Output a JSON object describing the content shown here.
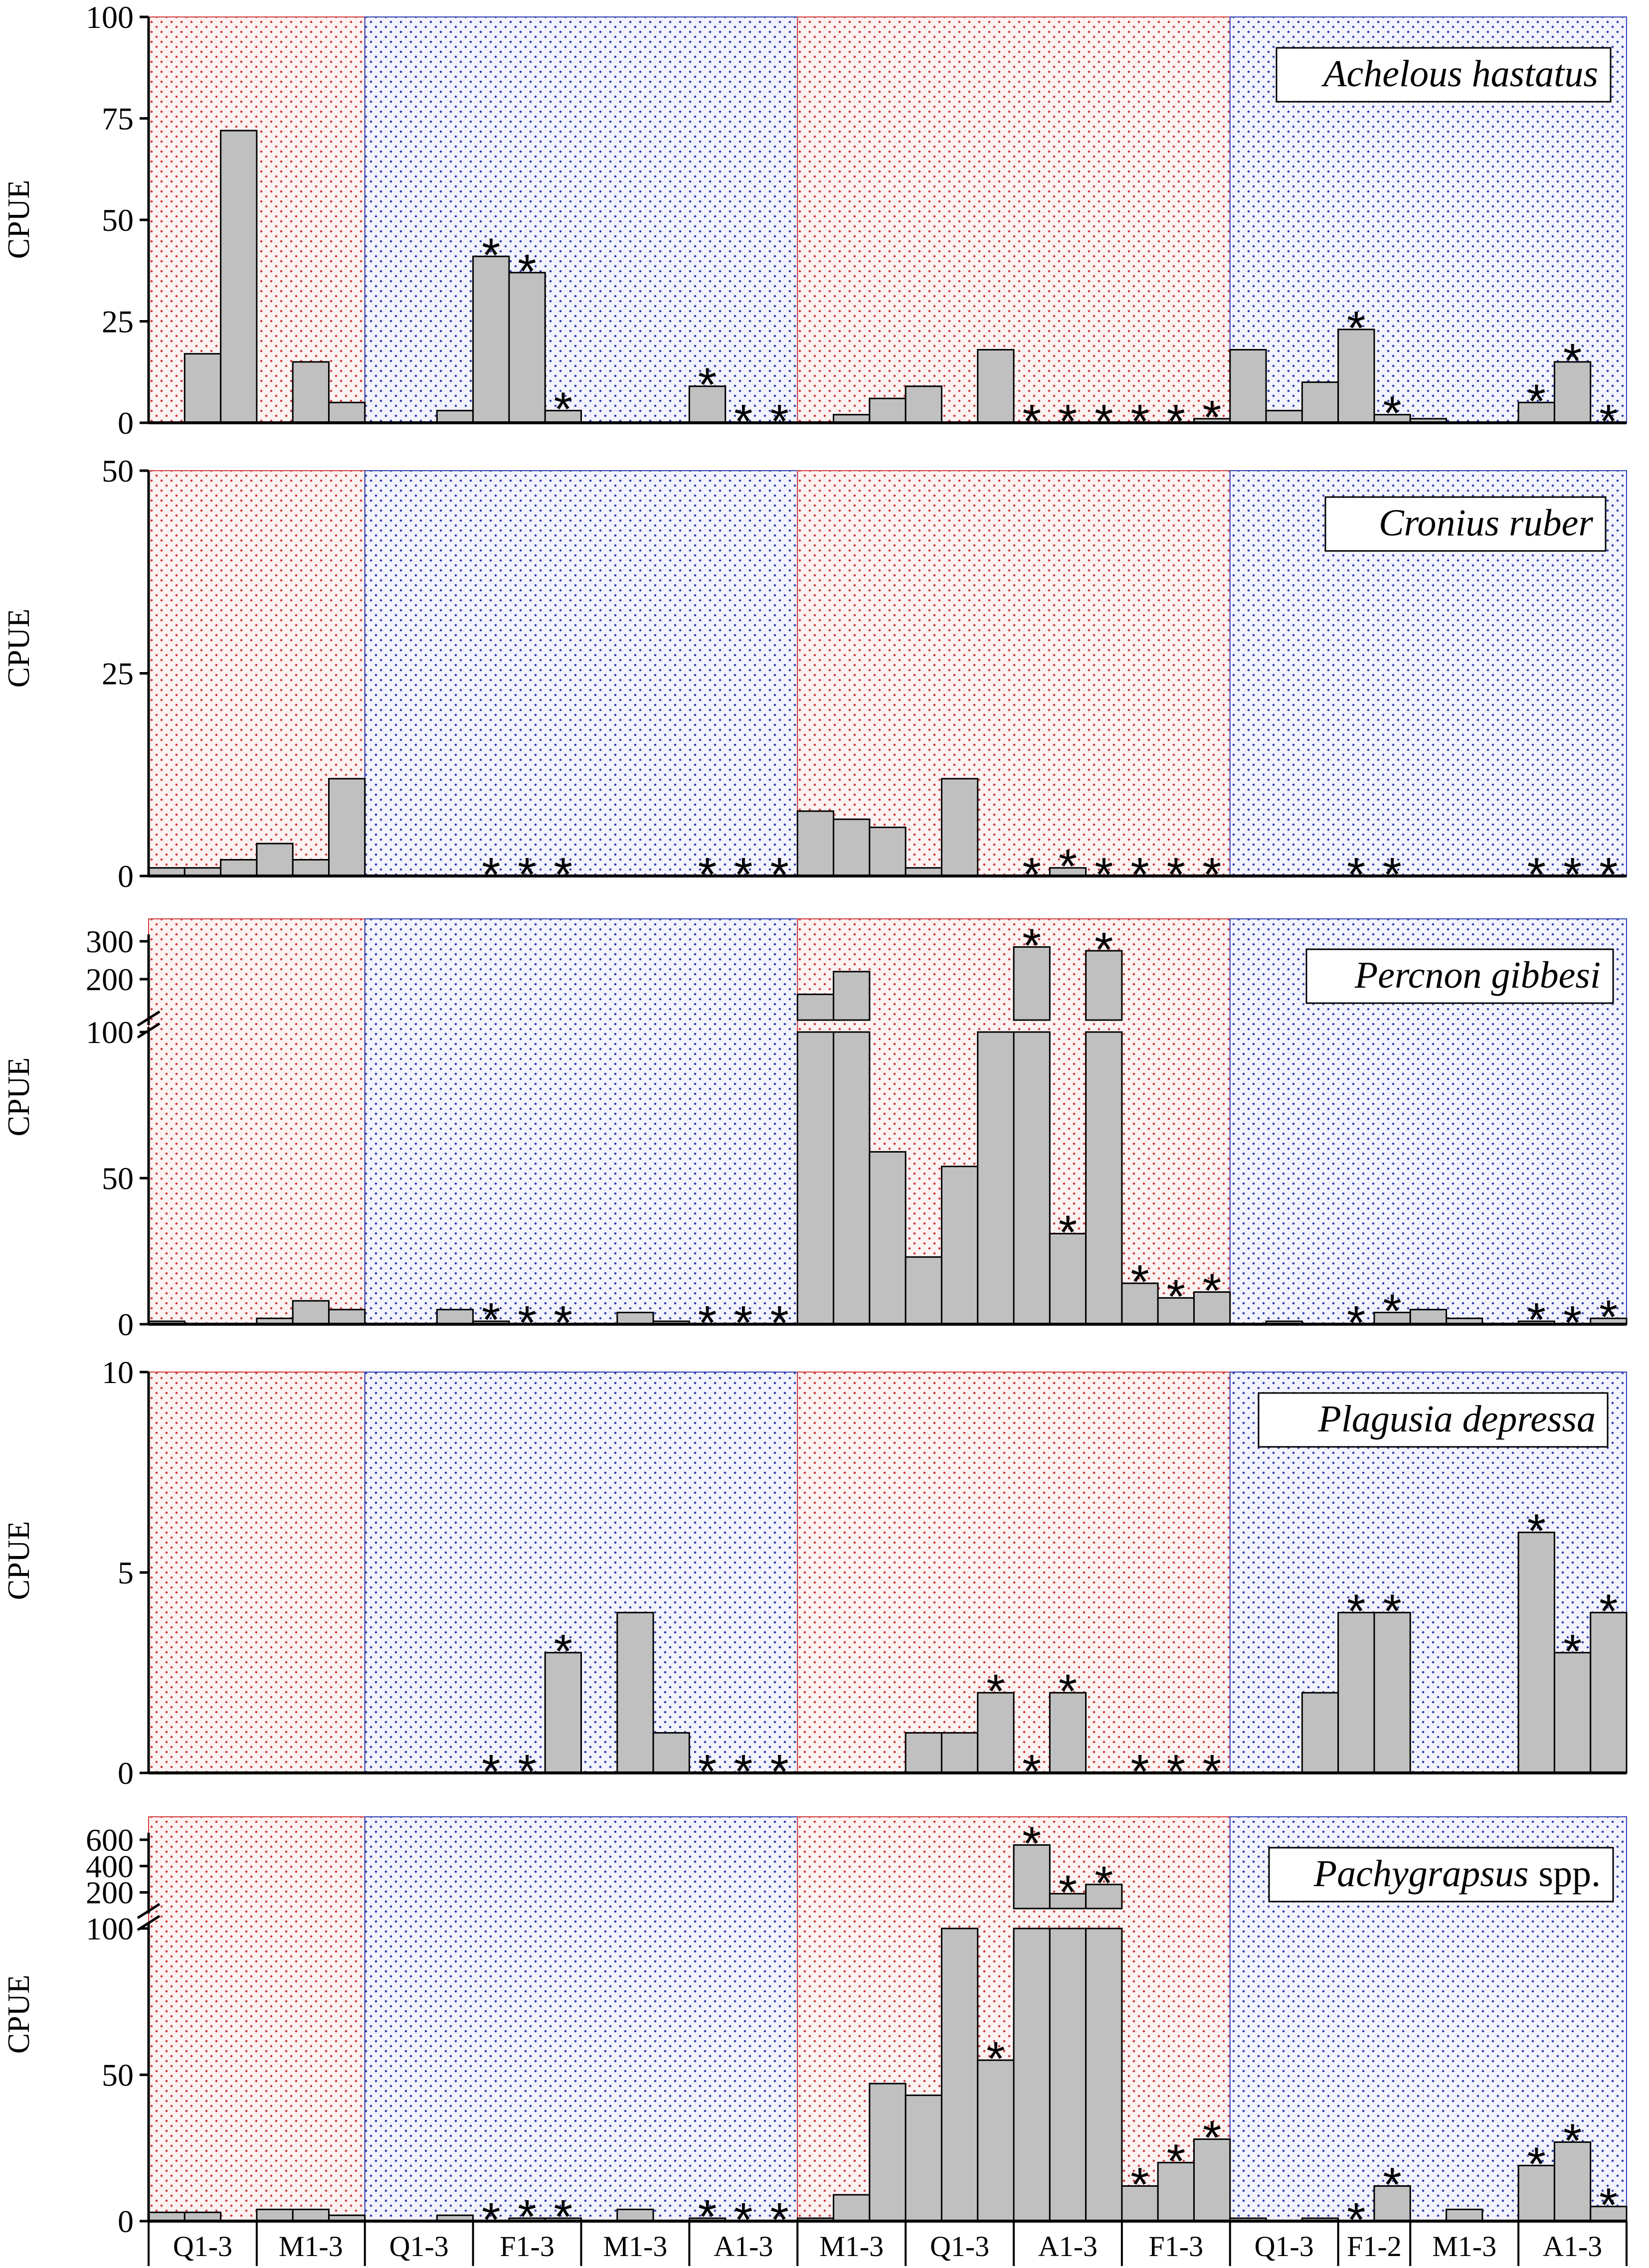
{
  "figure": {
    "y_axis_label": "CPUE",
    "star_symbol": "*"
  },
  "colors": {
    "bar_fill": "#c0c0c0",
    "bar_stroke": "#000000",
    "red_period": "#d23a3a",
    "blue_period": "#2f3fb0",
    "red_period_bg": "#fcf2f2",
    "blue_period_bg": "#f2f3fc"
  },
  "shading": [
    "red",
    "blue",
    "red",
    "blue"
  ],
  "x_axis": {
    "group_labels": [
      "Q1-3",
      "M1-3",
      "Q1-3",
      "F1-3",
      "M1-3",
      "A1-3",
      "M1-3",
      "Q1-3",
      "A1-3",
      "F1-3",
      "Q1-3",
      "F1-2",
      "M1-3",
      "A1-3"
    ],
    "group_sizes": [
      3,
      3,
      3,
      3,
      3,
      3,
      3,
      3,
      3,
      3,
      3,
      2,
      3,
      3
    ]
  },
  "chart_data": [
    {
      "type": "bar",
      "title": "Achelous hastatus",
      "ylabel": "CPUE",
      "ylim": [
        0,
        100
      ],
      "yticks": [
        "0",
        "25",
        "50",
        "75",
        "100"
      ],
      "values": [
        0,
        17,
        72,
        0,
        15,
        5,
        0,
        0,
        3,
        41,
        37,
        3,
        0,
        0,
        0,
        9,
        0,
        0,
        0,
        2,
        6,
        9,
        0,
        18,
        0,
        0,
        0,
        0,
        0,
        1,
        18,
        3,
        10,
        23,
        2,
        1,
        0,
        0,
        5,
        15,
        0
      ],
      "stars": [
        9,
        10,
        11,
        15,
        16,
        17,
        24,
        25,
        26,
        27,
        28,
        29,
        33,
        34,
        38,
        39,
        40
      ]
    },
    {
      "type": "bar",
      "title": "Cronius ruber",
      "ylabel": "CPUE",
      "ylim": [
        0,
        50
      ],
      "yticks": [
        "0",
        "25",
        "50"
      ],
      "values": [
        1,
        1,
        2,
        4,
        2,
        12,
        0,
        0,
        0,
        0,
        0,
        0,
        0,
        0,
        0,
        0,
        0,
        0,
        8,
        7,
        6,
        1,
        12,
        0,
        0,
        1,
        0,
        0,
        0,
        0,
        0,
        0,
        0,
        0,
        0,
        0,
        0,
        0,
        0,
        0,
        0
      ],
      "stars": [
        9,
        10,
        11,
        15,
        16,
        17,
        24,
        25,
        26,
        27,
        28,
        29,
        33,
        34,
        38,
        39,
        40
      ]
    },
    {
      "type": "bar",
      "title": "Percnon gibbesi",
      "ylabel": "CPUE",
      "ylim": [
        0,
        300
      ],
      "yticks": [
        "0",
        "50",
        "100",
        "200",
        "300"
      ],
      "axis_break": {
        "lower_max": 100,
        "upper_min": 100,
        "upper_max": 300
      },
      "values": [
        1,
        0,
        0,
        2,
        8,
        5,
        0,
        0,
        5,
        1,
        0,
        0,
        0,
        4,
        1,
        0,
        0,
        0,
        160,
        220,
        59,
        23,
        54,
        100,
        285,
        31,
        275,
        14,
        9,
        11,
        0,
        1,
        0,
        0,
        4,
        5,
        2,
        0,
        1,
        0,
        2
      ],
      "stars": [
        9,
        10,
        11,
        15,
        16,
        17,
        24,
        25,
        26,
        27,
        28,
        29,
        33,
        34,
        38,
        39,
        40
      ]
    },
    {
      "type": "bar",
      "title": "Plagusia depressa",
      "ylabel": "CPUE",
      "ylim": [
        0,
        10
      ],
      "yticks": [
        "0",
        "5",
        "10"
      ],
      "values": [
        0,
        0,
        0,
        0,
        0,
        0,
        0,
        0,
        0,
        0,
        0,
        3,
        0,
        4,
        1,
        0,
        0,
        0,
        0,
        0,
        0,
        1,
        1,
        2,
        0,
        2,
        0,
        0,
        0,
        0,
        0,
        0,
        2,
        4,
        4,
        0,
        0,
        0,
        6,
        3,
        4
      ],
      "stars": [
        9,
        10,
        11,
        15,
        16,
        17,
        23,
        24,
        25,
        27,
        28,
        29,
        33,
        34,
        38,
        39,
        40
      ]
    },
    {
      "type": "bar",
      "title": "Pachygrapsus",
      "title_suffix": "spp.",
      "ylabel": "CPUE",
      "ylim": [
        0,
        600
      ],
      "yticks": [
        "0",
        "50",
        "100",
        "200",
        "400",
        "600"
      ],
      "axis_break": {
        "lower_max": 100,
        "upper_min": 100,
        "upper_max": 600
      },
      "values": [
        3,
        3,
        0,
        4,
        4,
        2,
        0,
        0,
        2,
        0,
        1,
        1,
        0,
        4,
        0,
        1,
        0,
        0,
        1,
        9,
        47,
        43,
        100,
        55,
        560,
        190,
        260,
        12,
        20,
        28,
        1,
        0,
        1,
        0,
        12,
        0,
        4,
        0,
        19,
        27,
        5
      ],
      "stars": [
        9,
        10,
        11,
        15,
        16,
        17,
        23,
        24,
        25,
        26,
        27,
        28,
        29,
        33,
        34,
        38,
        39,
        40
      ]
    }
  ]
}
